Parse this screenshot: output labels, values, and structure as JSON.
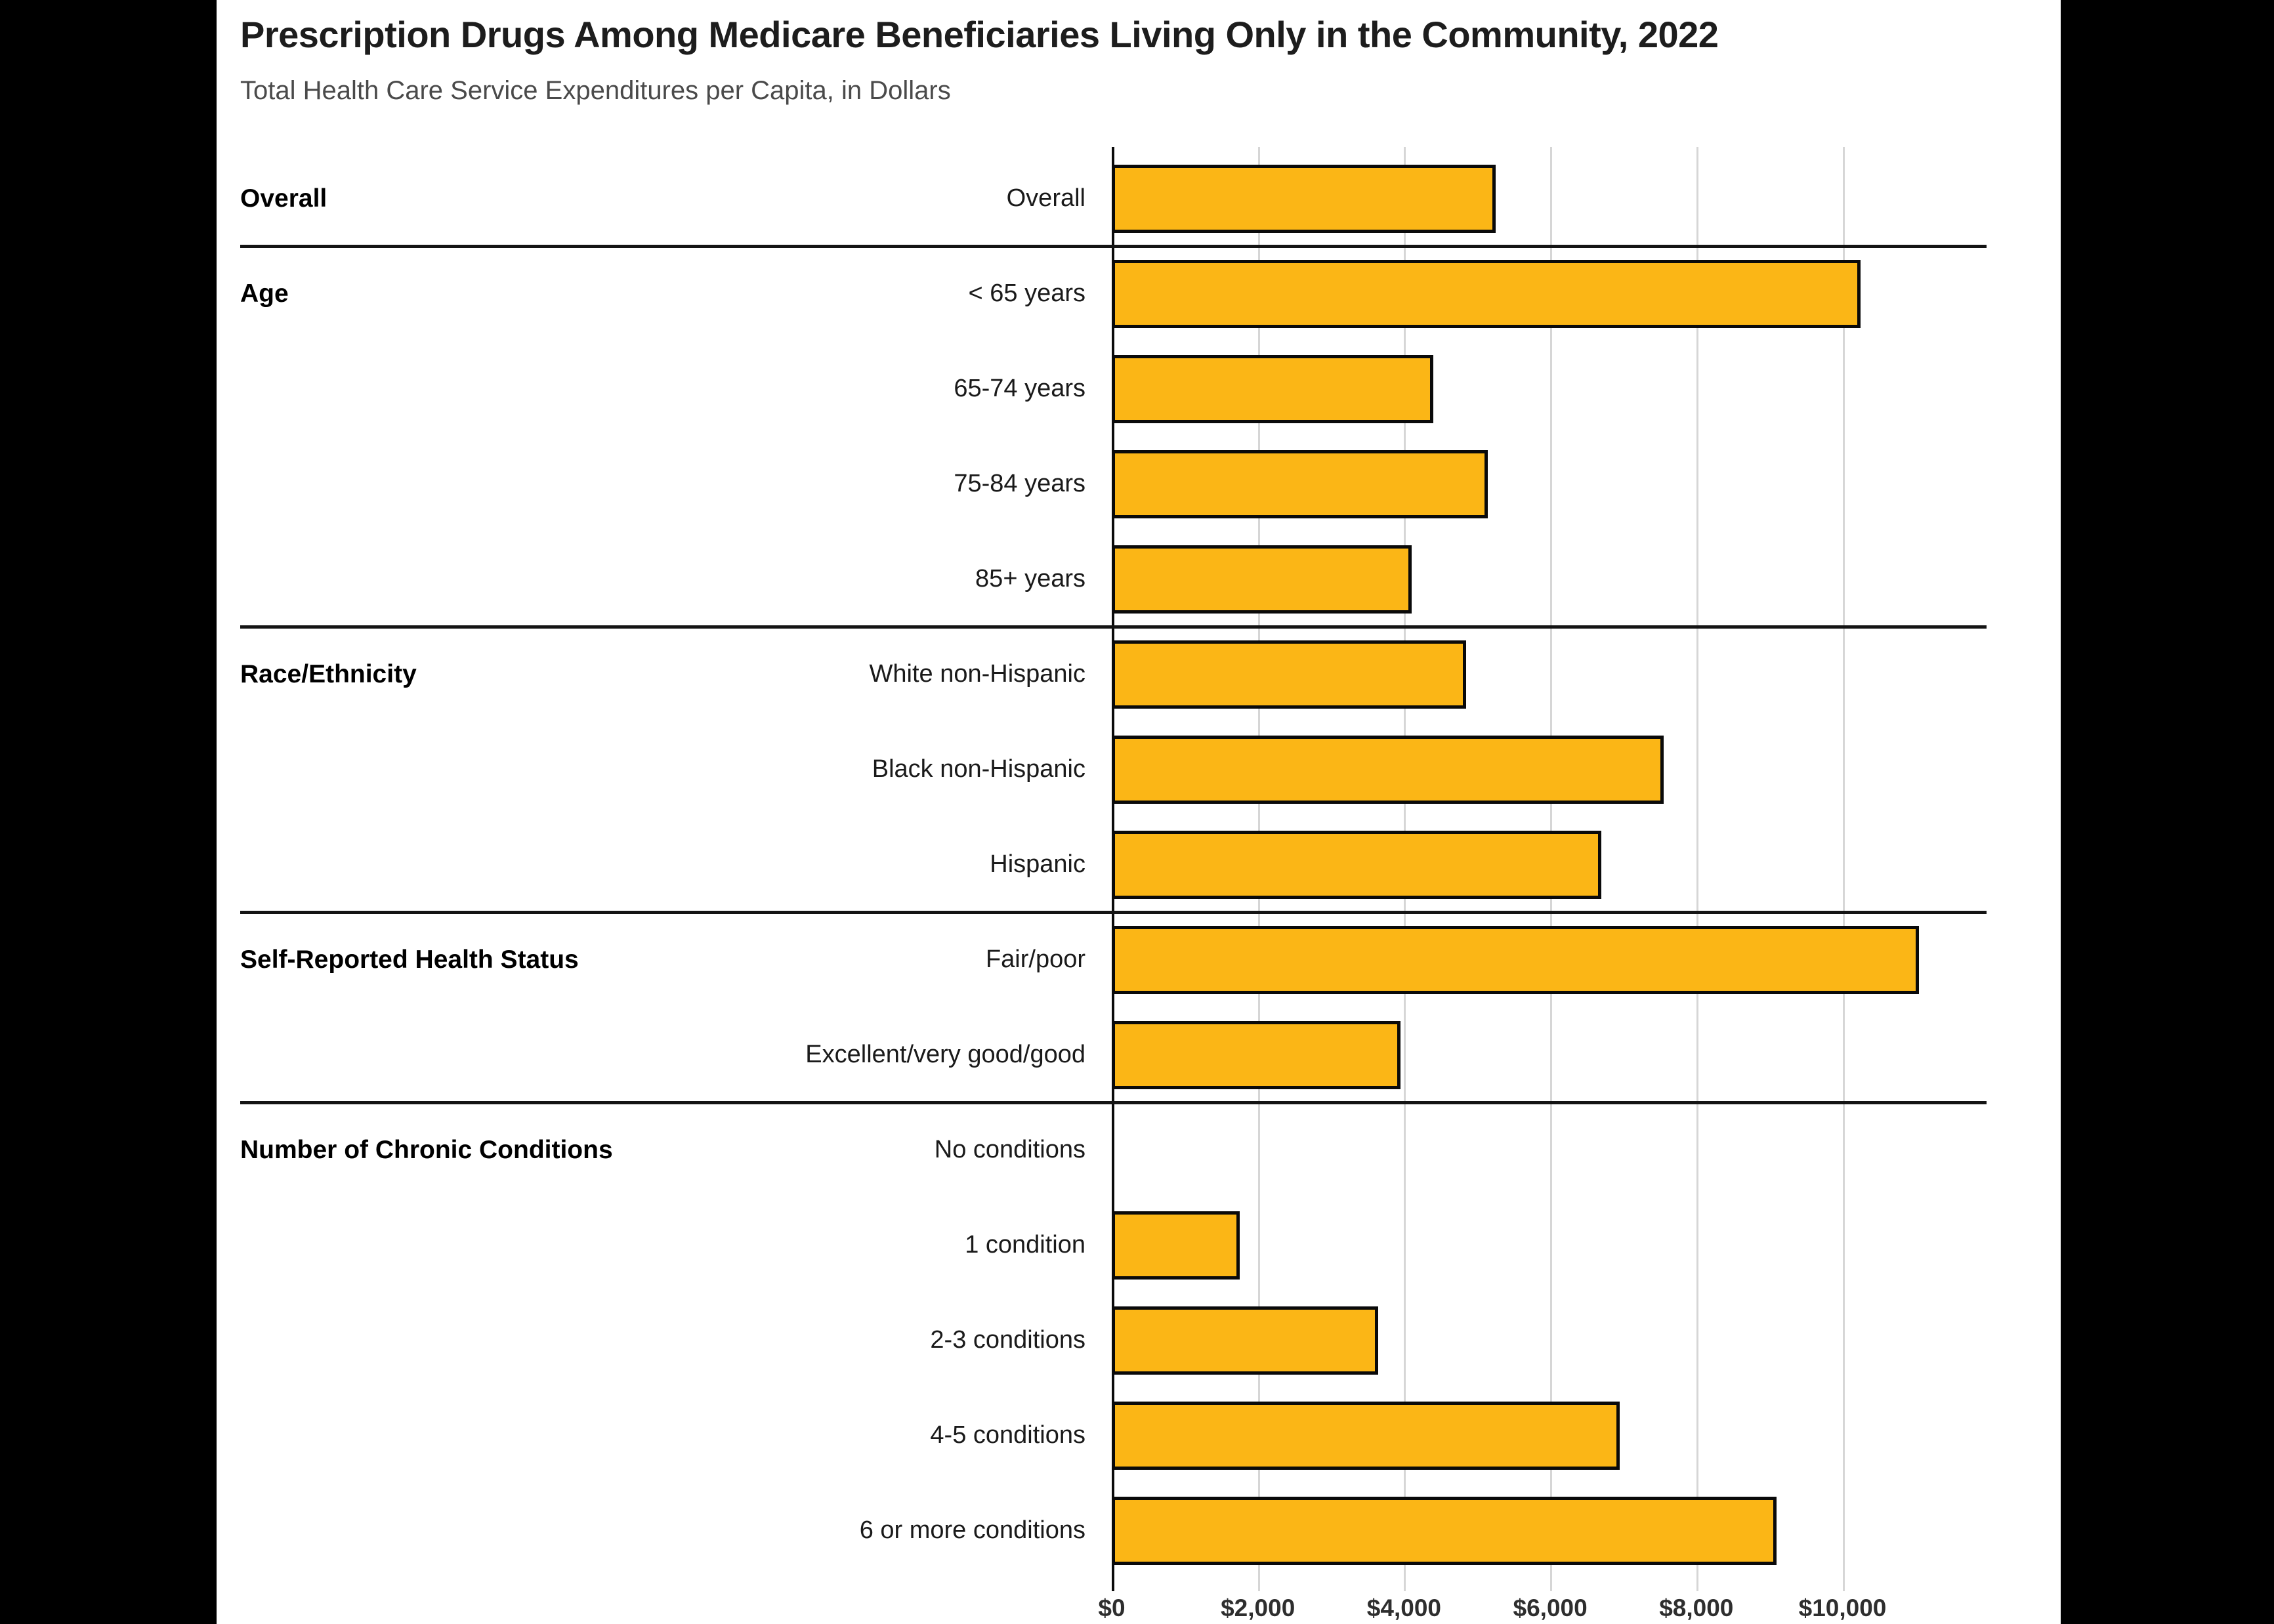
{
  "page": {
    "letterbox_color": "#000000",
    "panel_background": "#ffffff"
  },
  "header": {
    "title": "Prescription Drugs Among Medicare Beneficiaries Living Only in the Community, 2022",
    "subtitle": "Total Health Care Service Expenditures per Capita, in Dollars"
  },
  "colors": {
    "bar_fill": "#FBB616",
    "bar_border": "#0A0A0A",
    "gridline": "#D6D6D6",
    "axis_line": "#0A0A0A",
    "separator_line": "#141414",
    "title_text": "#1D1D1D",
    "subtitle_text": "#4A4A4A",
    "label_text": "#1A1A1A"
  },
  "chart_data": {
    "type": "bar",
    "orientation": "horizontal",
    "title": "Prescription Drugs Among Medicare Beneficiaries Living Only in the Community, 2022",
    "subtitle": "Total Health Care Service Expenditures per Capita, in Dollars",
    "value_unit": "dollars per capita",
    "xlim": [
      0,
      12000
    ],
    "x_tick_interval": 2000,
    "x_tick_labels": [
      "$0",
      "$2,000",
      "$4,000",
      "$6,000",
      "$8,000",
      "$10,000"
    ],
    "grid": true,
    "legend": "none",
    "sections": [
      {
        "header": "Overall",
        "rows": [
          {
            "label": "Overall",
            "value": 5250
          }
        ]
      },
      {
        "header": "Age",
        "rows": [
          {
            "label": "< 65 years",
            "value": 10250
          },
          {
            "label": "65-74 years",
            "value": 4400
          },
          {
            "label": "75-84 years",
            "value": 5150
          },
          {
            "label": "85+ years",
            "value": 4100
          }
        ]
      },
      {
        "header": "Race/Ethnicity",
        "rows": [
          {
            "label": "White non-Hispanic",
            "value": 4850
          },
          {
            "label": "Black non-Hispanic",
            "value": 7550
          },
          {
            "label": "Hispanic",
            "value": 6700
          }
        ]
      },
      {
        "header": "Self-Reported Health Status",
        "rows": [
          {
            "label": "Fair/poor",
            "value": 11050
          },
          {
            "label": "Excellent/very good/good",
            "value": 3950
          }
        ]
      },
      {
        "header": "Number of Chronic Conditions",
        "rows": [
          {
            "label": "No conditions",
            "value": 0
          },
          {
            "label": "1 condition",
            "value": 1750
          },
          {
            "label": "2-3 conditions",
            "value": 3650
          },
          {
            "label": "4-5 conditions",
            "value": 6950
          },
          {
            "label": "6 or more conditions",
            "value": 9100
          }
        ]
      }
    ]
  }
}
